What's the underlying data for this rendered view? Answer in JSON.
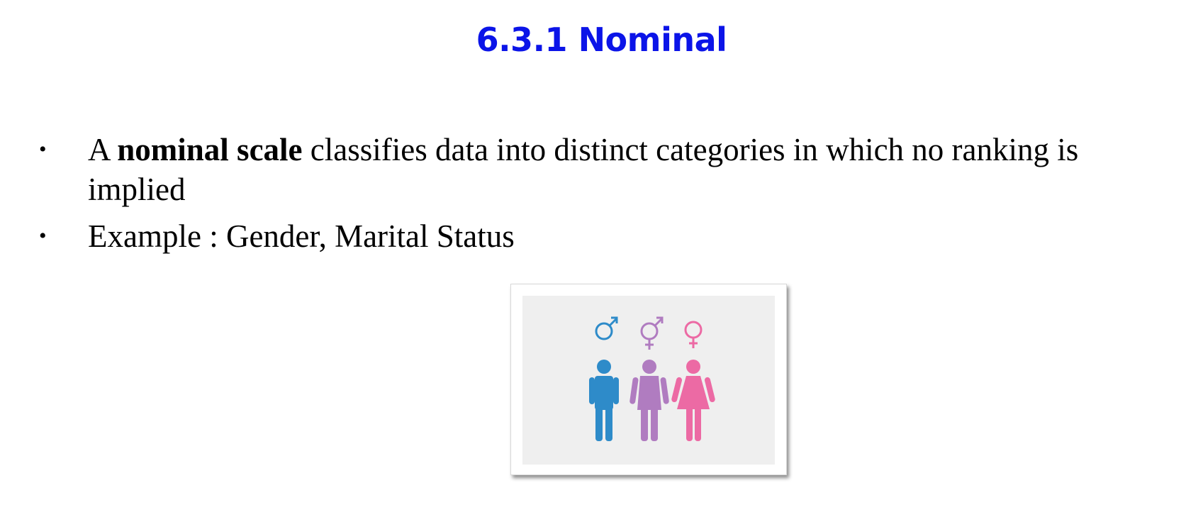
{
  "slide": {
    "title": "6.3.1 Nominal"
  },
  "bullets": [
    {
      "marker": "•",
      "lead": "A ",
      "emphasis": "nominal scale",
      "rest": " classifies data into distinct categories in which no ranking is implied"
    },
    {
      "marker": "•",
      "text": "Example : Gender, Marital Status"
    }
  ],
  "figure": {
    "icons": [
      "male-symbol-icon",
      "intersex-symbol-icon",
      "female-symbol-icon",
      "male-figure-icon",
      "intersex-figure-icon",
      "female-figure-icon"
    ],
    "colors": {
      "male": "#2e8bc9",
      "intersex": "#b07cc0",
      "female": "#ec6aa4",
      "background": "#efefef"
    }
  }
}
